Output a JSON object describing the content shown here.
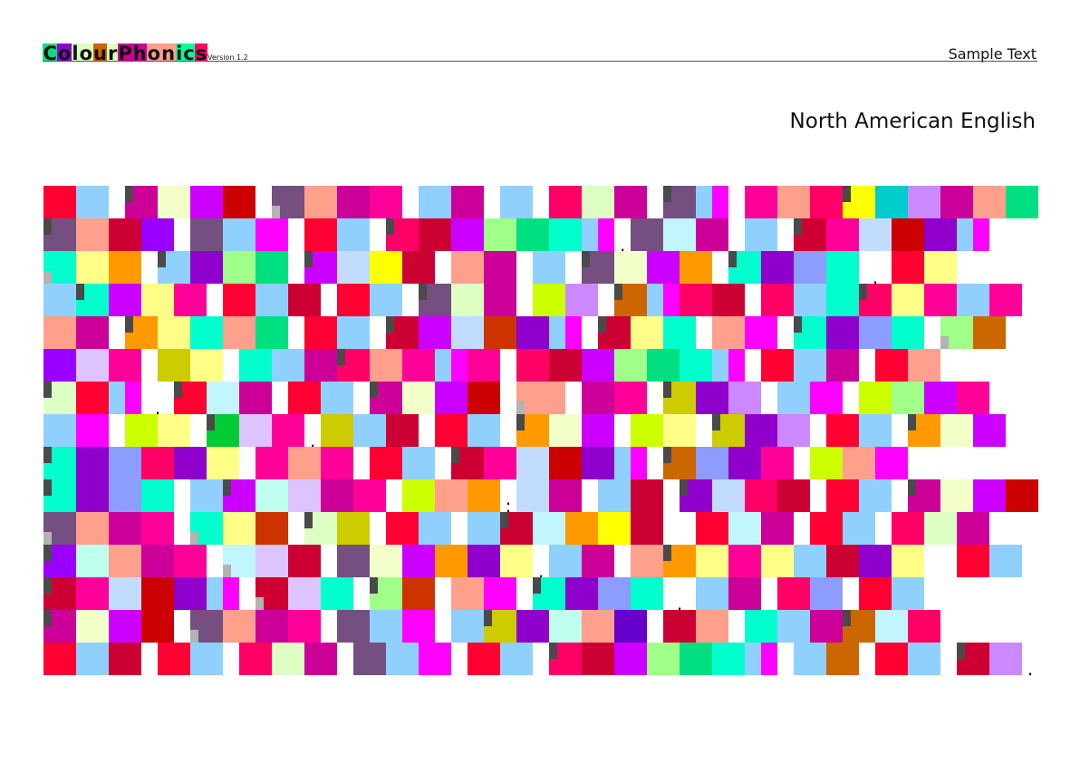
{
  "header": {
    "logo_letters": [
      {
        "ch": "C",
        "bg": "#00e080"
      },
      {
        "ch": "o",
        "bg": "#9000cc"
      },
      {
        "ch": "l",
        "bg": "#ddffc4"
      },
      {
        "ch": "o",
        "bg": "#ddffc4"
      },
      {
        "ch": "u",
        "bg": "#cc6600"
      },
      {
        "ch": "r",
        "bg": "#ddffc4"
      },
      {
        "ch": "P",
        "bg": "#cc0099"
      },
      {
        "ch": "h",
        "bg": "#cc0099"
      },
      {
        "ch": "o",
        "bg": "#ffa08c"
      },
      {
        "ch": "n",
        "bg": "#ffa08c"
      },
      {
        "ch": "i",
        "bg": "#00ffa0"
      },
      {
        "ch": "c",
        "bg": "#00ffa0"
      },
      {
        "ch": "s",
        "bg": "#ff0066"
      }
    ],
    "version": "Version 1.2",
    "sample_text": "Sample Text",
    "language": "North American English"
  },
  "palette": {
    "R": "#ff0033",
    "LB": "#8fd0ff",
    "M": "#cc0099",
    "CR": "#f2ffc8",
    "V": "#cc00ff",
    "DR": "#cc0000",
    "G": "#754f7f",
    "S": "#ffa08c",
    "P": "#ff0099",
    "HP": "#ff0066",
    "PG": "#ddffc4",
    "F": "#ff00ff",
    "Y": "#ffff00",
    "C": "#00cccc",
    "L": "#cc88ff",
    "GR": "#00e080",
    "CR2": "#cc0033",
    "PU": "#9900ff",
    "LG": "#a0ff88",
    "T": "#00ffcc",
    "LY": "#ffff88",
    "O": "#ff9900",
    "DP": "#9000cc",
    "PB": "#c2dcff",
    "LP": "#ddc4ff",
    "OL": "#cccc00",
    "CH": "#ccff00",
    "BR": "#cc6600",
    "RB": "#cc3300",
    "PW": "#8c9cff",
    "IC": "#c2f6ff",
    "MG": "#bfffee",
    "GD": "#00cc33",
    "IN": "#6600cc"
  },
  "rows": [
    "R LB _ M* CR V DR _ G+ S M P _ LB M _ LB _ HP PG M _ G* LB/ F/ _ P S HP Y* C L M S GR",
    "G* S CR2 PU _ G LB F _ R LB _ HP* CR2 V LG GR T LB/ F/ _, G IC M _ LB _ CR2* P PB DR DP LB/ F/",
    "T+ LY O _ LB* DP LG GR _ V* PB Y CR2 _ S M _ LB _ G* CR V O _ T* DP PW T __. R LY",
    "LB T* V LY P _ R LB CR2 _ R LB _ G* PG M _ CH L _ BR* LB/ F/ HP CR2 _ HP LB T HP* LY P LB P",
    "S M _ O* LY T S GR _ R LB _ CR2* V PB RB DP LB/ F/ _ CR2* LY T _ S F _ T* DP PW T _ LG+ BR",
    "PU LP P _ OL LY _ T LB M HP* S P LB/ F/ P _ HP CR2 V LG GR T LB/ F/ _ R LB M _ R S",
    "PG* R LB/ F/ __. R* IC M _ R LB _ M* CR V DR _ S+/ S _ M P _ OL* DP L _ LB F _ CH LG V P",
    "LB F _ CH LY _ GD* LP P _, OL LB CR2 _ R LB _ O* CR V _ CH LY _ OL* DP L _ R LB _ O* CR V",
    "T* DP PW HP DP LY _ P S P _ R LB _ CR2* P PB DR DP LB/ F/ _ BR* PW DP P _ CH S F",
    "T* DP PW T _ LB V* MG LP M P _ CH S O _; PB M _ LB CR2 _ DP* PB HP CR2 _ R LB _ M* CR V DR",
    "G+ S M P _ T+ LY RB _ PG* OL _ R LB _ LB CR2* IC O Y CR2 __ R IC M _ R LB _ HP PG M",
    "PU* MG S M P _ IC+ LP CR2 _ G CR V O DP LY _, LB M _ S O* LY P LY LB CR2 DP LY __ R LB",
    "CR2* P PB DR DP LB/ F/ _ CR2+ LP T _ LG* RB _ S F _ T* DP PW T __. LB M _ HP PW _ R LB",
    "M* CR V DR _ G+ S M P _ G LB F _ LB OL* DP MG S IN _ CR2 S _ T LB M BR* IC HP",
    "R LB CR2 _ R LB _ HP PG M _ G LB F _ R LB _ HP* CR2 V LG GR T LB/ F/ _ LB BR _ R LB _ CR2* L _."
  ]
}
